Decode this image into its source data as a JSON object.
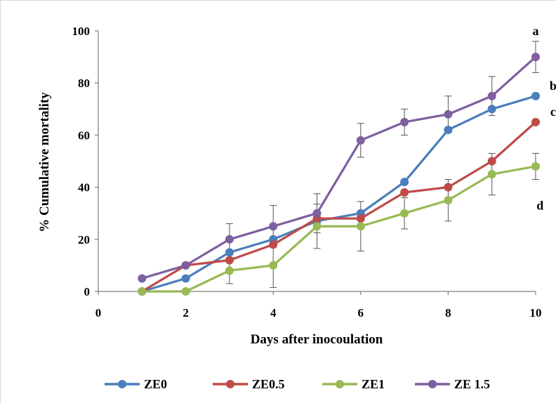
{
  "chart_data": {
    "type": "line",
    "xlabel": "Days after inocoulation",
    "ylabel": "% Cumulative mortality",
    "xlim": [
      0,
      10
    ],
    "ylim": [
      0,
      100
    ],
    "xticks": [
      0,
      2,
      4,
      6,
      8,
      10
    ],
    "yticks": [
      0,
      20,
      40,
      60,
      80,
      100
    ],
    "grid": false,
    "legend_position": "bottom",
    "x": [
      1,
      2,
      3,
      4,
      5,
      6,
      7,
      8,
      9,
      10
    ],
    "series": [
      {
        "name": "ZE0",
        "color": "#4a7ebb",
        "values": [
          0,
          5,
          15,
          20,
          27,
          30,
          42,
          62,
          70,
          75
        ],
        "error": [
          0,
          0,
          0,
          0,
          0,
          0,
          0,
          0,
          0,
          0
        ]
      },
      {
        "name": "ZE0.5",
        "color": "#be4b48",
        "values": [
          0,
          10,
          12,
          18,
          28,
          28,
          38,
          40,
          50,
          65
        ],
        "error": [
          0,
          0,
          0,
          0,
          0,
          0,
          0,
          0,
          0,
          0
        ]
      },
      {
        "name": "ZE1",
        "color": "#98b954",
        "values": [
          0,
          0,
          8,
          10,
          25,
          25,
          30,
          35,
          45,
          48
        ],
        "error": [
          0,
          0,
          5,
          8.5,
          8.5,
          9.5,
          6,
          8,
          8,
          5
        ]
      },
      {
        "name": "ZE 1.5",
        "color": "#7d5fa0",
        "values": [
          5,
          10,
          20,
          25,
          30,
          58,
          65,
          68,
          75,
          90
        ],
        "error": [
          0,
          0,
          6,
          8,
          7.5,
          6.5,
          5,
          7,
          7.5,
          6
        ]
      }
    ],
    "annotations": [
      {
        "text": "a",
        "x": 10,
        "y": 100
      },
      {
        "text": "b",
        "x": 10.4,
        "y": 79
      },
      {
        "text": "c",
        "x": 10.4,
        "y": 69
      },
      {
        "text": "d",
        "x": 10.1,
        "y": 33
      }
    ]
  }
}
